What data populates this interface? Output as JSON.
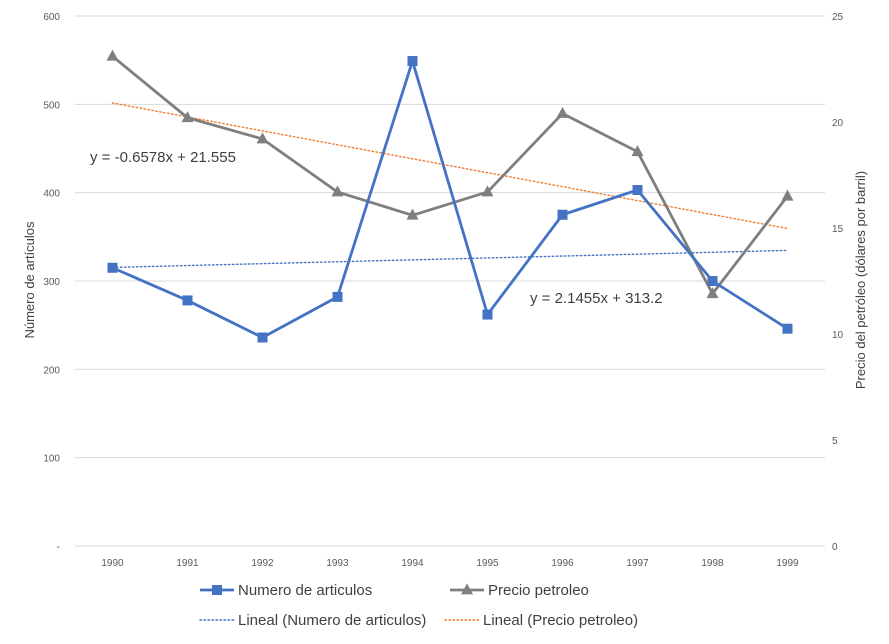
{
  "chart_data": {
    "type": "line",
    "categories": [
      "1990",
      "1991",
      "1992",
      "1993",
      "1994",
      "1995",
      "1996",
      "1997",
      "1998",
      "1999"
    ],
    "series": [
      {
        "name": "Numero de articulos",
        "axis": "left",
        "color": "#4472C4",
        "marker": "square",
        "values": [
          315,
          278,
          236,
          282,
          549,
          262,
          375,
          403,
          300,
          246
        ]
      },
      {
        "name": "Precio petroleo",
        "axis": "right",
        "color": "#7F7F7F",
        "marker": "triangle",
        "values": [
          23.1,
          20.2,
          19.2,
          16.7,
          15.6,
          16.7,
          20.4,
          18.6,
          11.9,
          16.5
        ]
      }
    ],
    "trendlines": [
      {
        "name": "Lineal (Numero de articulos)",
        "series": "Numero de articulos",
        "axis": "left",
        "color": "#4472C4",
        "style": "dotted",
        "slope": 2.1455,
        "intercept": 313.2,
        "equation": "y = 2.1455x + 313.2"
      },
      {
        "name": "Lineal (Precio petroleo)",
        "series": "Precio petroleo",
        "axis": "right",
        "color": "#ED7D31",
        "style": "dotted",
        "slope": -0.6578,
        "intercept": 21.555,
        "equation": "y = -0.6578x + 21.555"
      }
    ],
    "y_left": {
      "label": "Número de artículos",
      "min": 0,
      "max": 600,
      "ticks": [
        0,
        100,
        200,
        300,
        400,
        500,
        600
      ],
      "tick_labels": [
        "-",
        "100",
        "200",
        "300",
        "400",
        "500",
        "600"
      ]
    },
    "y_right": {
      "label": "Precio del petróleo (dólares por barril)",
      "min": 0,
      "max": 25,
      "ticks": [
        0,
        5,
        10,
        15,
        20,
        25
      ],
      "tick_labels": [
        "0",
        "5",
        "10",
        "15",
        "20",
        "25"
      ]
    },
    "xlabel": "",
    "grid": true,
    "grid_color": "#D9D9D9",
    "legend_position": "bottom",
    "legend": [
      "Numero de articulos",
      "Precio petroleo",
      "Lineal (Numero de articulos)",
      "Lineal (Precio petroleo)"
    ]
  }
}
